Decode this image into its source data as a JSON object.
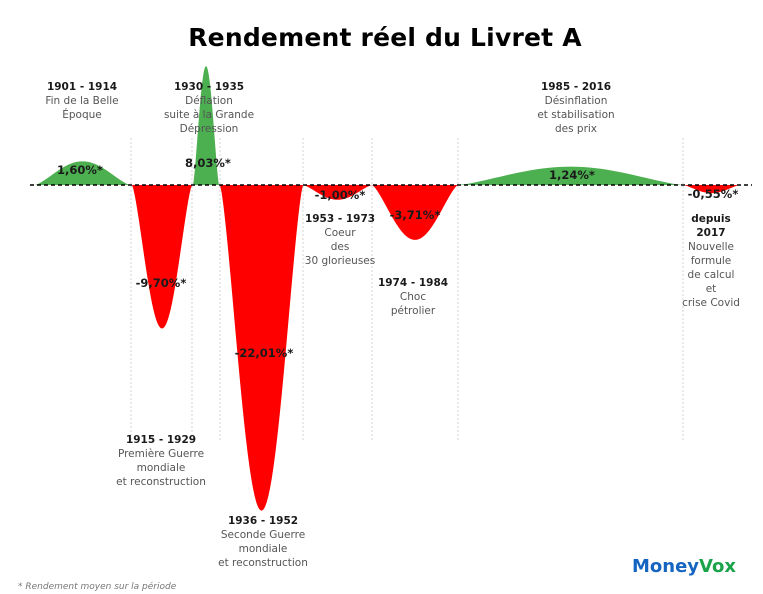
{
  "title": "Rendement réel du Livret A",
  "footnote": "* Rendement moyen sur la période",
  "brand": {
    "part1": "Money",
    "part2": "Vox",
    "color1": "#1565c0",
    "color2": "#1aa34a"
  },
  "colors": {
    "positive": "#4caf50",
    "negative": "#ff0000",
    "zero_line": "#000000",
    "separator": "#c8c8c8"
  },
  "chart_data": {
    "type": "area",
    "title": "Rendement réel du Livret A",
    "xlabel": "",
    "ylabel": "",
    "grid": false,
    "periods": [
      {
        "label": "1901 - 1914",
        "desc": [
          "Fin de la Belle",
          "Époque"
        ],
        "value": "1,60%*",
        "v": 1.6
      },
      {
        "label": "1915 - 1929",
        "desc": [
          "Première Guerre",
          "mondiale",
          "et reconstruction"
        ],
        "value": "-9,70%*",
        "v": -9.7
      },
      {
        "label": "1930 - 1935",
        "desc": [
          "Déflation",
          "suite à la Grande",
          "Dépression"
        ],
        "value": "8,03%*",
        "v": 8.03
      },
      {
        "label": "1936 - 1952",
        "desc": [
          "Seconde Guerre",
          "mondiale",
          "et reconstruction"
        ],
        "value": "-22,01%*",
        "v": -22.01
      },
      {
        "label": "1953 - 1973",
        "desc": [
          "Coeur",
          "des",
          "30 glorieuses"
        ],
        "value": "-1,00%*",
        "v": -1.0
      },
      {
        "label": "1974 - 1984",
        "desc": [
          "Choc",
          "pétrolier"
        ],
        "value": "-3,71%*",
        "v": -3.71
      },
      {
        "label": "1985 - 2016",
        "desc": [
          "Désinflation",
          "et stabilisation",
          "des prix"
        ],
        "value": "1,24%*",
        "v": 1.24
      },
      {
        "label": "depuis 2017",
        "label_lines": [
          "depuis",
          "2017"
        ],
        "desc": [
          "Nouvelle",
          "formule",
          "de calcul",
          "et",
          "crise Covid"
        ],
        "value": "-0,55%*",
        "v": -0.55
      }
    ]
  }
}
